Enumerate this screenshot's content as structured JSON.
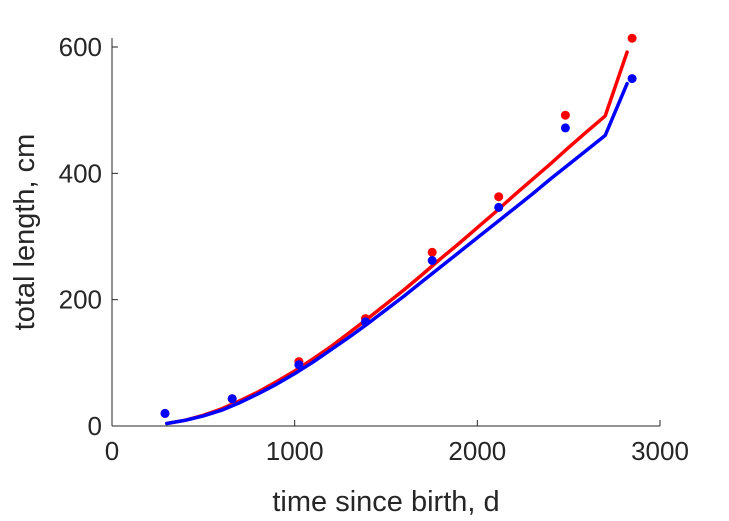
{
  "chart_data": {
    "type": "scatter",
    "title": "",
    "xlabel": "time since birth, d",
    "ylabel": "total length, cm",
    "xlim": [
      0,
      3000
    ],
    "ylim": [
      0,
      600
    ],
    "xticks": [
      0,
      1000,
      2000,
      3000
    ],
    "yticks": [
      0,
      200,
      400,
      600
    ],
    "grid": false,
    "legend": "none",
    "series": [
      {
        "color": "#ff0000",
        "points": {
          "x": [
            290,
            658,
            1023,
            1388,
            1753,
            2117,
            2482,
            2847
          ],
          "y": [
            20,
            43,
            102,
            170,
            275,
            363,
            492,
            614
          ]
        },
        "fit": {
          "x": [
            300,
            400,
            500,
            600,
            700,
            800,
            900,
            1000,
            1100,
            1200,
            1300,
            1400,
            1500,
            1600,
            1700,
            1800,
            1900,
            2000,
            2100,
            2200,
            2300,
            2400,
            2500,
            2600,
            2700,
            2820
          ],
          "y": [
            4,
            9,
            17,
            27,
            40,
            54,
            70,
            87,
            106,
            126,
            148,
            170,
            193,
            216,
            240,
            265,
            289,
            314,
            339,
            365,
            390,
            415,
            441,
            466,
            491,
            592
          ]
        }
      },
      {
        "color": "#0000ff",
        "points": {
          "x": [
            290,
            658,
            1023,
            1388,
            1753,
            2117,
            2482,
            2847
          ],
          "y": [
            20,
            43,
            97,
            165,
            262,
            346,
            472,
            550
          ]
        },
        "fit": {
          "x": [
            300,
            400,
            500,
            600,
            700,
            800,
            900,
            1000,
            1100,
            1200,
            1300,
            1400,
            1500,
            1600,
            1700,
            1800,
            1900,
            2000,
            2100,
            2200,
            2300,
            2400,
            2500,
            2600,
            2700,
            2820
          ],
          "y": [
            4,
            9,
            16,
            25,
            37,
            51,
            66,
            83,
            101,
            121,
            141,
            162,
            184,
            206,
            229,
            252,
            275,
            298,
            321,
            344,
            367,
            391,
            414,
            437,
            460,
            542
          ]
        }
      }
    ]
  }
}
